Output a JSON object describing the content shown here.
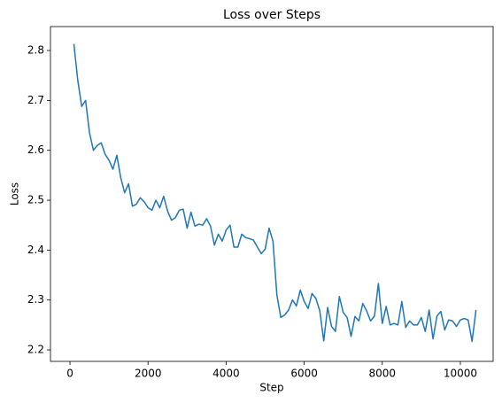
{
  "chart_data": {
    "type": "line",
    "title": "Loss over Steps",
    "x_label": "Step",
    "y_label": "Loss",
    "color": "#1f77b4",
    "x": [
      100,
      200,
      300,
      400,
      500,
      600,
      700,
      800,
      900,
      1000,
      1100,
      1200,
      1300,
      1400,
      1500,
      1600,
      1700,
      1800,
      1900,
      2000,
      2100,
      2200,
      2300,
      2400,
      2500,
      2600,
      2700,
      2800,
      2900,
      3000,
      3100,
      3200,
      3300,
      3400,
      3500,
      3600,
      3700,
      3800,
      3900,
      4000,
      4100,
      4200,
      4300,
      4400,
      4500,
      4600,
      4700,
      4800,
      4900,
      5000,
      5100,
      5200,
      5300,
      5400,
      5500,
      5600,
      5700,
      5800,
      5900,
      6000,
      6100,
      6200,
      6300,
      6400,
      6500,
      6600,
      6700,
      6800,
      6900,
      7000,
      7100,
      7200,
      7300,
      7400,
      7500,
      7600,
      7700,
      7800,
      7900,
      8000,
      8100,
      8200,
      8300,
      8400,
      8500,
      8600,
      8700,
      8800,
      8900,
      9000,
      9100,
      9200,
      9300,
      9400,
      9500,
      9600,
      9700,
      9800,
      9900,
      10000,
      10100,
      10200,
      10300,
      10400
    ],
    "values": [
      2.813,
      2.74,
      2.688,
      2.7,
      2.635,
      2.6,
      2.61,
      2.615,
      2.592,
      2.58,
      2.562,
      2.59,
      2.545,
      2.515,
      2.533,
      2.488,
      2.492,
      2.505,
      2.497,
      2.485,
      2.48,
      2.5,
      2.485,
      2.508,
      2.478,
      2.46,
      2.465,
      2.48,
      2.482,
      2.444,
      2.476,
      2.448,
      2.452,
      2.45,
      2.463,
      2.448,
      2.41,
      2.432,
      2.418,
      2.44,
      2.45,
      2.406,
      2.406,
      2.432,
      2.425,
      2.423,
      2.42,
      2.406,
      2.393,
      2.402,
      2.444,
      2.418,
      2.31,
      2.265,
      2.27,
      2.28,
      2.3,
      2.288,
      2.32,
      2.297,
      2.283,
      2.313,
      2.303,
      2.278,
      2.218,
      2.285,
      2.247,
      2.237,
      2.307,
      2.275,
      2.265,
      2.227,
      2.267,
      2.258,
      2.293,
      2.278,
      2.258,
      2.268,
      2.333,
      2.253,
      2.287,
      2.25,
      2.253,
      2.25,
      2.297,
      2.245,
      2.258,
      2.25,
      2.25,
      2.265,
      2.237,
      2.28,
      2.222,
      2.268,
      2.277,
      2.24,
      2.26,
      2.258,
      2.247,
      2.26,
      2.263,
      2.26,
      2.217,
      2.28
    ],
    "xlim": [
      -500,
      10840
    ],
    "ylim": [
      2.177,
      2.848
    ],
    "xticks": [
      0,
      2000,
      4000,
      6000,
      8000,
      10000
    ],
    "yticks": [
      2.2,
      2.3,
      2.4,
      2.5,
      2.6,
      2.7,
      2.8
    ]
  }
}
